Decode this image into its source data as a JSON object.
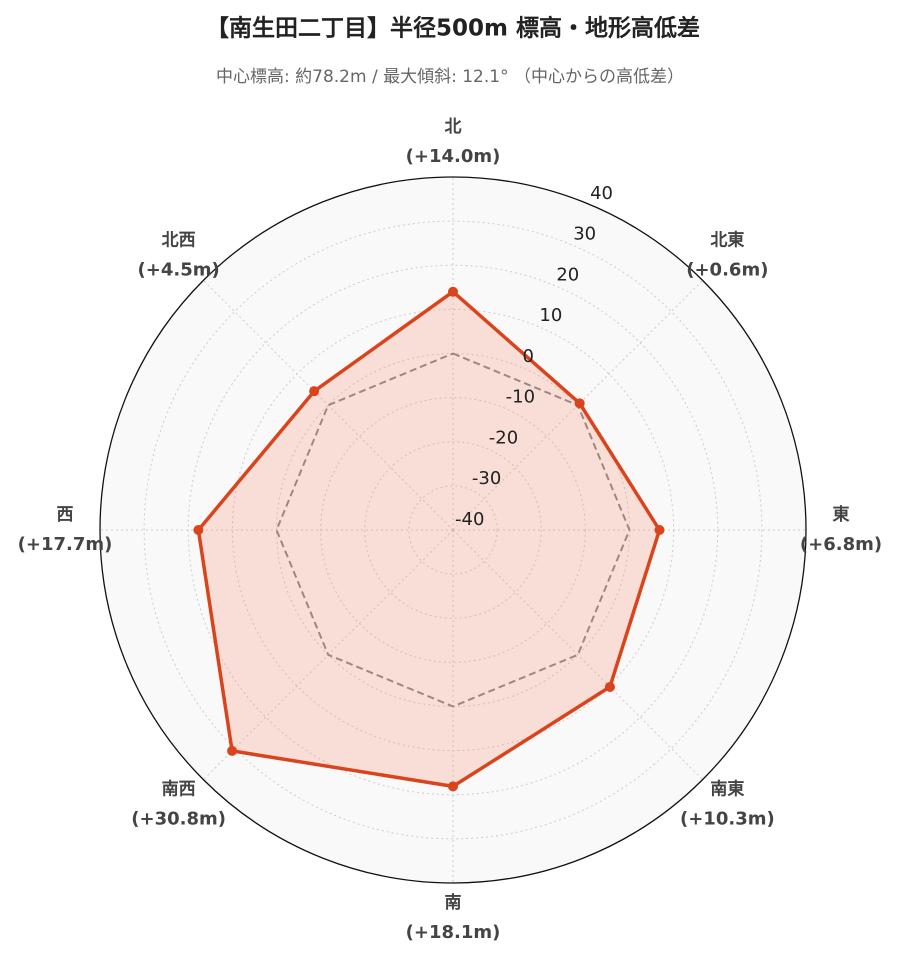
{
  "chart_data": {
    "type": "radar",
    "title": "【南生田二丁目】半径500m 標高・地形高低差",
    "subtitle": "中心標高: 約78.2m / 最大傾斜: 12.1° （中心からの高低差）",
    "categories": [
      "北",
      "北東",
      "東",
      "南東",
      "南",
      "南西",
      "西",
      "北西"
    ],
    "series": [
      {
        "color": "#d9441c",
        "fill": "rgba(250,128,100,0.22)",
        "values": [
          14.0,
          0.6,
          6.8,
          10.3,
          18.1,
          30.8,
          17.7,
          4.5
        ],
        "value_labels": [
          "(+14.0m)",
          "(+0.6m)",
          "(+6.8m)",
          "(+10.3m)",
          "(+18.1m)",
          "(+30.8m)",
          "(+17.7m)",
          "(+4.5m)"
        ]
      },
      {
        "color": "#888888",
        "dash": true,
        "values": [
          0,
          0,
          0,
          0,
          0,
          0,
          0,
          0
        ]
      }
    ],
    "rlim": [
      -40,
      40
    ],
    "rticks": [
      -40,
      -30,
      -20,
      -10,
      0,
      10,
      20,
      30,
      40
    ],
    "grid": true
  }
}
